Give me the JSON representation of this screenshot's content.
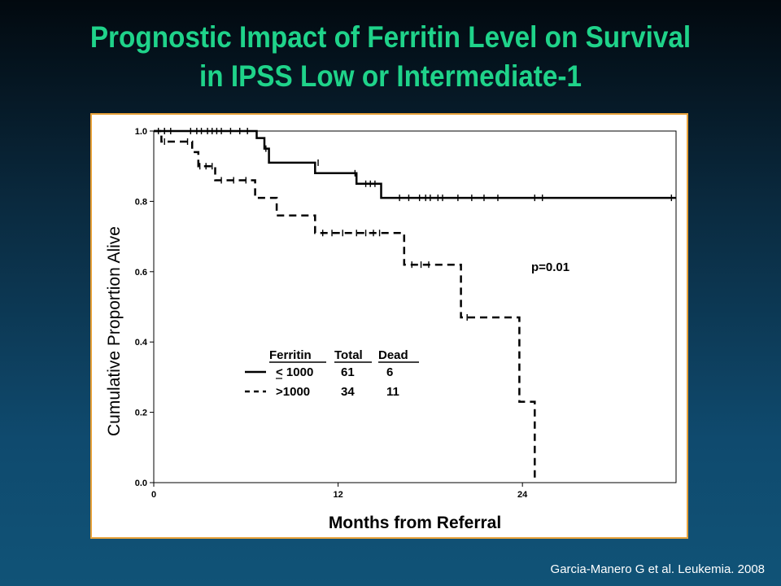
{
  "slide": {
    "title_line1": "Prognostic Impact of Ferritin Level on Survival",
    "title_line2": "in IPSS Low or Intermediate-1",
    "citation": "Garcia-Manero G et al. Leukemia. 2008"
  },
  "colors": {
    "title": "#1fd38a",
    "panel_border": "#e8a23a",
    "background_top": "#02090f",
    "background_bottom": "#105377",
    "plot": "#000000"
  },
  "chart_data": {
    "type": "line",
    "subtype": "kaplan-meier",
    "xlabel": "Months from Referral",
    "ylabel": "Cumulative Proportion Alive",
    "xlim": [
      0,
      34
    ],
    "ylim": [
      0,
      1.0
    ],
    "x_ticks": [
      0,
      12,
      24
    ],
    "x_tick_labels": [
      "0",
      "12",
      "24"
    ],
    "y_ticks": [
      0.0,
      0.2,
      0.4,
      0.6,
      0.8,
      1.0
    ],
    "y_tick_labels": [
      "0.0",
      "0.2",
      "0.4",
      "0.6",
      "0.8",
      "1.0"
    ],
    "grid": false,
    "annotation": "p=0.01",
    "legend": {
      "placement": "center-left",
      "headers": [
        "Ferritin",
        "Total",
        "Dead"
      ],
      "rows": [
        {
          "label": "< 1000",
          "total": "61",
          "dead": "6",
          "style": "solid"
        },
        {
          "label": ">1000",
          "total": "34",
          "dead": "11",
          "style": "dashed"
        }
      ]
    },
    "series": [
      {
        "name": "< 1000",
        "style": "solid",
        "x": [
          0,
          6.7,
          7.2,
          7.5,
          10.5,
          13.2,
          14.8,
          34
        ],
        "y": [
          1.0,
          0.98,
          0.95,
          0.91,
          0.88,
          0.85,
          0.81,
          0.81
        ],
        "censor_x": [
          0.3,
          0.7,
          1.1,
          2.4,
          2.8,
          3.1,
          3.5,
          3.8,
          4.1,
          4.4,
          5.0,
          5.6,
          6.1,
          7.3,
          10.7,
          13.1,
          13.8,
          14.1,
          14.4,
          16.0,
          16.6,
          17.3,
          17.7,
          18.0,
          18.5,
          18.8,
          19.8,
          20.7,
          21.5,
          22.4,
          24.8,
          25.3,
          33.7
        ],
        "censor_y": [
          1.0,
          1.0,
          1.0,
          1.0,
          1.0,
          1.0,
          1.0,
          1.0,
          1.0,
          1.0,
          1.0,
          1.0,
          1.0,
          0.95,
          0.91,
          0.88,
          0.85,
          0.85,
          0.85,
          0.81,
          0.81,
          0.81,
          0.81,
          0.81,
          0.81,
          0.81,
          0.81,
          0.81,
          0.81,
          0.81,
          0.81,
          0.81,
          0.81
        ]
      },
      {
        "name": ">1000",
        "style": "dashed",
        "x": [
          0,
          0.5,
          2.5,
          2.9,
          4.0,
          6.6,
          8.0,
          10.5,
          16.3,
          20.0,
          23.8,
          24.8,
          24.8
        ],
        "y": [
          1.0,
          0.97,
          0.94,
          0.9,
          0.86,
          0.81,
          0.76,
          0.71,
          0.62,
          0.47,
          0.23,
          0.23,
          0.0
        ],
        "censor_x": [
          0.7,
          2.2,
          3.0,
          3.4,
          3.8,
          4.4,
          5.2,
          6.0,
          11.0,
          11.6,
          12.3,
          13.2,
          13.8,
          14.3,
          14.7,
          16.8,
          17.4,
          17.9,
          20.4
        ],
        "censor_y": [
          0.97,
          0.97,
          0.9,
          0.9,
          0.9,
          0.86,
          0.86,
          0.86,
          0.71,
          0.71,
          0.71,
          0.71,
          0.71,
          0.71,
          0.71,
          0.62,
          0.62,
          0.62,
          0.47
        ]
      }
    ]
  }
}
